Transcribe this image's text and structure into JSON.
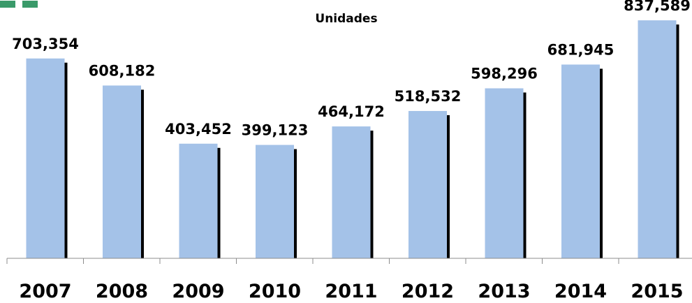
{
  "colors": {
    "bar_fill": "#a4c2e8",
    "bar_shadow": "#000000",
    "axis": "#8c8c8c",
    "text": "#000000",
    "corner_mark": "#3a9a6a"
  },
  "chart_data": {
    "type": "bar",
    "title": "Unidades",
    "categories": [
      "2007",
      "2008",
      "2009",
      "2010",
      "2011",
      "2012",
      "2013",
      "2014",
      "2015"
    ],
    "values": [
      703354,
      608182,
      403452,
      399123,
      464172,
      518532,
      598296,
      681945,
      837589
    ],
    "value_labels": [
      "703,354",
      "608,182",
      "403,452",
      "399,123",
      "464,172",
      "518,532",
      "598,296",
      "681,945",
      "837,589"
    ],
    "ylim": [
      0,
      860000
    ],
    "grid": false,
    "legend": "none"
  }
}
